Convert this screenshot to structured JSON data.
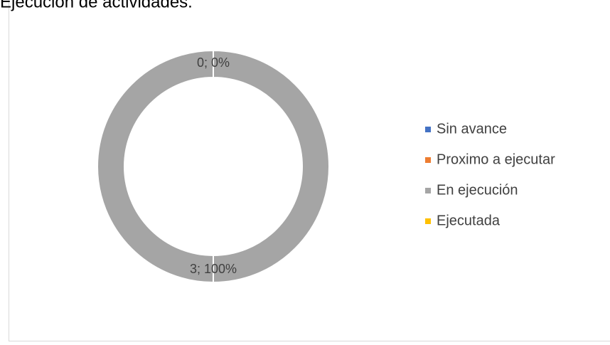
{
  "chart_data": {
    "type": "donut",
    "title": "Ejecución de actividades:",
    "categories": [
      "Sin avance",
      "Proximo a ejecutar",
      "En ejecución",
      "Ejecutada"
    ],
    "values": [
      0,
      0,
      3,
      0
    ],
    "value_labels": [
      "0; 0%",
      null,
      "3; 100%",
      null
    ],
    "colors": [
      "#4472c4",
      "#ed7d31",
      "#a5a5a5",
      "#ffc000"
    ],
    "legend": "right"
  }
}
